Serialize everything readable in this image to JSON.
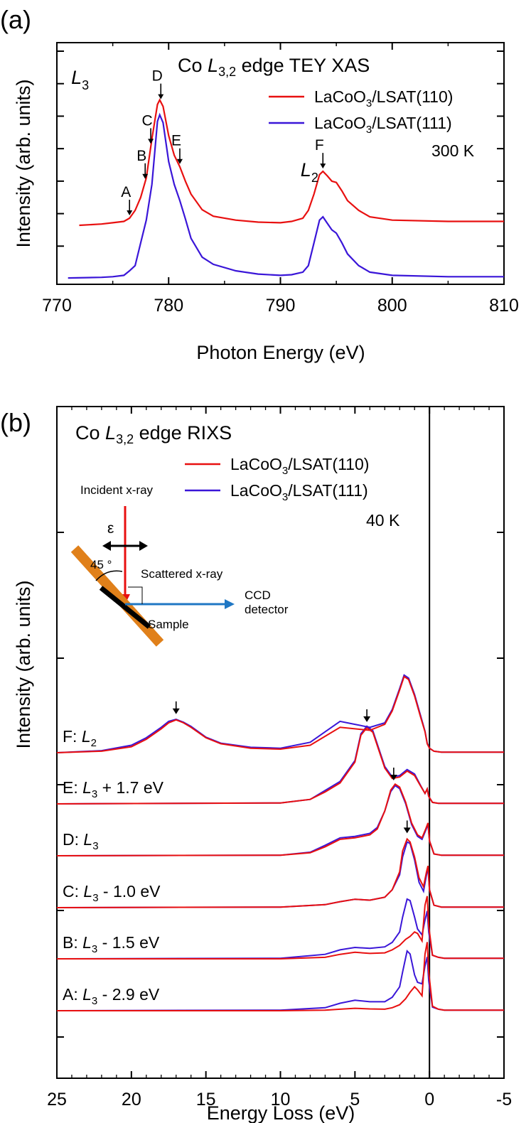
{
  "figure": {
    "panel_a_label": "(a)",
    "panel_b_label": "(b)"
  },
  "colors": {
    "red": "#e81010",
    "blue": "#3a16d8",
    "orange": "#e0801a",
    "arrow_blue": "#1f77c4"
  },
  "chart_data": [
    {
      "type": "line",
      "title_prefix": "Co ",
      "title_edge": "L",
      "title_sub": "3,2",
      "title_suffix": " edge TEY XAS",
      "xlabel": "Photon Energy (eV)",
      "ylabel": "Intensity (arb. units)",
      "xlim": [
        770,
        810
      ],
      "ylim": [
        0,
        3.5
      ],
      "xticks": [
        770,
        780,
        790,
        800,
        810
      ],
      "temperature": "300 K",
      "series": [
        {
          "name_main": "LaCoO",
          "name_sub": "3",
          "name_rest": "/LSAT(110)",
          "color": "#e81010",
          "x": [
            772,
            774,
            775,
            776,
            776.5,
            777,
            777.5,
            778,
            778.5,
            779,
            779.2,
            779.5,
            780,
            780.5,
            781,
            781.5,
            782,
            783,
            784,
            786,
            788,
            790,
            791,
            792,
            792.5,
            793,
            793.5,
            793.8,
            794.2,
            794.6,
            795,
            795.5,
            796,
            797,
            798,
            800,
            805,
            810
          ],
          "y": [
            0.82,
            0.84,
            0.86,
            0.88,
            0.93,
            1.05,
            1.25,
            1.55,
            2.15,
            2.68,
            2.75,
            2.65,
            2.2,
            1.9,
            1.72,
            1.5,
            1.3,
            1.06,
            0.96,
            0.9,
            0.87,
            0.86,
            0.88,
            0.93,
            1.05,
            1.3,
            1.6,
            1.65,
            1.58,
            1.5,
            1.48,
            1.35,
            1.2,
            1.05,
            0.95,
            0.9,
            0.88,
            0.88
          ]
        },
        {
          "name_main": "LaCoO",
          "name_sub": "3",
          "name_rest": "/LSAT(111)",
          "color": "#3a16d8",
          "x": [
            771,
            774,
            775,
            776,
            776.5,
            777,
            777.5,
            778,
            778.5,
            779,
            779.2,
            779.5,
            780,
            780.5,
            781,
            781.5,
            782,
            783,
            784,
            786,
            788,
            790,
            791,
            792,
            792.5,
            793,
            793.5,
            793.8,
            794.2,
            794.6,
            795,
            795.5,
            796,
            797,
            798,
            800,
            805,
            810
          ],
          "y": [
            0.01,
            0.02,
            0.03,
            0.05,
            0.12,
            0.2,
            0.55,
            0.9,
            1.45,
            2.42,
            2.52,
            2.4,
            1.8,
            1.45,
            1.2,
            0.92,
            0.62,
            0.33,
            0.22,
            0.12,
            0.07,
            0.05,
            0.06,
            0.1,
            0.2,
            0.55,
            0.9,
            0.95,
            0.85,
            0.75,
            0.7,
            0.55,
            0.38,
            0.2,
            0.1,
            0.05,
            0.03,
            0.03
          ]
        }
      ],
      "annotations": [
        {
          "label": "A",
          "x": 776.5
        },
        {
          "label": "B",
          "x": 777.9
        },
        {
          "label": "C",
          "x": 778.4
        },
        {
          "label": "D",
          "x": 779.3
        },
        {
          "label": "E",
          "x": 781.0
        },
        {
          "label": "F",
          "x": 793.8
        }
      ],
      "edge_labels": [
        {
          "main": "L",
          "sub": "3",
          "x": 777.0
        },
        {
          "main": "L",
          "sub": "2",
          "x": 791.8
        }
      ]
    },
    {
      "type": "line",
      "title_prefix": "Co ",
      "title_edge": "L",
      "title_sub": "3,2",
      "title_suffix": " edge RIXS",
      "xlabel": "Energy Loss (eV)",
      "ylabel": "Intensity (arb. units)",
      "xlim": [
        25,
        -5
      ],
      "xticks": [
        25,
        20,
        15,
        10,
        5,
        0,
        -5
      ],
      "temperature": "40 K",
      "spectra": [
        {
          "label_prefix": "A: ",
          "label_edge": "L",
          "label_sub": "3",
          "label_suffix": " - 2.9 eV",
          "baseline": 0.0,
          "red": {
            "x": [
              25,
              10,
              7,
              6,
              5,
              4,
              3,
              2.5,
              2,
              1.6,
              1.3,
              1.0,
              0.8,
              0.5,
              0.3,
              0.15,
              0.05,
              -0.2,
              -0.6,
              -1,
              -5
            ],
            "y": [
              0,
              0,
              0.02,
              0.05,
              0.08,
              0.06,
              0.05,
              0.1,
              0.2,
              0.4,
              0.62,
              0.8,
              0.7,
              0.5,
              1.9,
              2.3,
              1.3,
              0.15,
              0.05,
              0.02,
              0.02
            ]
          },
          "blue": {
            "x": [
              25,
              10,
              7,
              6,
              5,
              4,
              3,
              2.5,
              2,
              1.8,
              1.5,
              1.3,
              1.0,
              0.8,
              0.5,
              0.3,
              0.15,
              0.05,
              -0.2,
              -0.6,
              -1,
              -5
            ],
            "y": [
              0,
              0.02,
              0.1,
              0.25,
              0.35,
              0.3,
              0.3,
              0.45,
              0.8,
              1.3,
              2.0,
              1.9,
              1.2,
              0.95,
              0.9,
              1.5,
              1.8,
              1.0,
              0.12,
              0.05,
              0.02,
              0.02
            ]
          },
          "arrow": null
        },
        {
          "label_prefix": "B: ",
          "label_edge": "L",
          "label_sub": "3",
          "label_suffix": " - 1.5 eV",
          "baseline": 1.0,
          "red": {
            "x": [
              25,
              10,
              7,
              6,
              5,
              4,
              3,
              2.5,
              2,
              1.6,
              1.3,
              1.0,
              0.8,
              0.5,
              0.3,
              0.15,
              0.05,
              -0.2,
              -0.6,
              -1,
              -5
            ],
            "y": [
              0,
              0,
              0.05,
              0.15,
              0.22,
              0.18,
              0.2,
              0.3,
              0.45,
              0.65,
              0.75,
              0.9,
              0.85,
              0.6,
              1.8,
              2.1,
              1.1,
              0.12,
              0.05,
              0.02,
              0.02
            ]
          },
          "blue": {
            "x": [
              25,
              10,
              7,
              6,
              5,
              4,
              3,
              2.5,
              2,
              1.8,
              1.5,
              1.3,
              1.0,
              0.8,
              0.5,
              0.3,
              0.15,
              0.05,
              -0.2,
              -0.6,
              -1,
              -5
            ],
            "y": [
              0,
              0.02,
              0.15,
              0.3,
              0.38,
              0.35,
              0.4,
              0.55,
              0.9,
              1.4,
              2.0,
              1.95,
              1.4,
              1.0,
              0.8,
              1.3,
              1.6,
              0.9,
              0.12,
              0.05,
              0.02,
              0.02
            ]
          },
          "arrow": null
        },
        {
          "label_prefix": "C: ",
          "label_edge": "L",
          "label_sub": "3",
          "label_suffix": " - 1.0 eV",
          "baseline": 2.0,
          "red": {
            "x": [
              25,
              10,
              7,
              6,
              5,
              4,
              3,
              2.5,
              2,
              1.8,
              1.5,
              1.3,
              1.0,
              0.7,
              0.4,
              0.2,
              0.1,
              0,
              -0.3,
              -0.8,
              -5
            ],
            "y": [
              0,
              0.02,
              0.1,
              0.2,
              0.28,
              0.25,
              0.35,
              0.6,
              1.2,
              1.9,
              2.3,
              2.2,
              1.7,
              1.0,
              0.7,
              1.2,
              1.4,
              0.6,
              0.08,
              0.02,
              0.02
            ]
          },
          "blue": {
            "x": [
              25,
              10,
              7,
              6,
              5,
              4,
              3,
              2.5,
              2,
              1.8,
              1.5,
              1.3,
              1.0,
              0.7,
              0.4,
              0.2,
              0.1,
              0,
              -0.3,
              -0.8,
              -5
            ],
            "y": [
              0,
              0.02,
              0.1,
              0.2,
              0.28,
              0.25,
              0.35,
              0.6,
              1.1,
              1.7,
              2.2,
              2.15,
              1.6,
              0.85,
              0.55,
              1.1,
              1.35,
              0.6,
              0.08,
              0.02,
              0.02
            ]
          },
          "arrow": 1.5
        },
        {
          "label_prefix": "D: ",
          "label_edge": "L",
          "label_sub": "3",
          "label_suffix": "",
          "baseline": 3.0,
          "red": {
            "x": [
              25,
              10,
              8,
              7,
              6,
              5,
              4,
              3.5,
              3,
              2.6,
              2.3,
              2.0,
              1.6,
              1.2,
              0.8,
              0.5,
              0.25,
              0.1,
              0,
              -0.3,
              -0.8,
              -5
            ],
            "y": [
              0,
              0.02,
              0.1,
              0.3,
              0.55,
              0.6,
              0.7,
              0.9,
              1.5,
              2.2,
              2.4,
              2.3,
              1.8,
              1.1,
              0.7,
              0.6,
              0.9,
              1.1,
              0.5,
              0.06,
              0.02,
              0.02
            ]
          },
          "blue": {
            "x": [
              25,
              10,
              8,
              7,
              6,
              5,
              4,
              3.5,
              3,
              2.6,
              2.3,
              2.0,
              1.6,
              1.2,
              0.8,
              0.5,
              0.25,
              0.1,
              0,
              -0.3,
              -0.8,
              -5
            ],
            "y": [
              0,
              0.02,
              0.12,
              0.35,
              0.6,
              0.65,
              0.75,
              0.95,
              1.5,
              2.15,
              2.35,
              2.25,
              1.75,
              1.05,
              0.65,
              0.55,
              0.85,
              1.05,
              0.5,
              0.06,
              0.02,
              0.02
            ]
          },
          "arrow": 2.4
        },
        {
          "label_prefix": "E: ",
          "label_edge": "L",
          "label_sub": "3",
          "label_suffix": " + 1.7 eV",
          "baseline": 4.0,
          "red": {
            "x": [
              25,
              10,
              8,
              7,
              6,
              5,
              4.6,
              4.2,
              3.8,
              3.4,
              3.0,
              2.5,
              2.0,
              1.5,
              1.0,
              0.6,
              0.3,
              0.15,
              0.05,
              -0.2,
              -0.6,
              -5
            ],
            "y": [
              0,
              0.03,
              0.15,
              0.4,
              0.7,
              1.4,
              2.3,
              2.55,
              2.4,
              1.8,
              1.2,
              0.85,
              0.9,
              1.1,
              0.95,
              0.6,
              0.35,
              0.5,
              0.25,
              0.05,
              0.02,
              0.02
            ]
          },
          "blue": {
            "x": [
              25,
              10,
              8,
              7,
              6,
              5,
              4.6,
              4.2,
              3.8,
              3.4,
              3.0,
              2.5,
              2.0,
              1.5,
              1.0,
              0.6,
              0.3,
              0.15,
              0.05,
              -0.2,
              -0.6,
              -5
            ],
            "y": [
              0,
              0.03,
              0.15,
              0.45,
              0.75,
              1.45,
              2.35,
              2.6,
              2.45,
              1.85,
              1.25,
              0.9,
              0.95,
              1.15,
              1.0,
              0.62,
              0.35,
              0.5,
              0.25,
              0.05,
              0.02,
              0.02
            ]
          },
          "arrow": 4.2
        },
        {
          "label_prefix": "F: ",
          "label_edge": "L",
          "label_sub": "2",
          "label_suffix": "",
          "baseline": 5.0,
          "red": {
            "x": [
              25,
              22,
              20,
              19,
              18,
              17.5,
              17,
              16.5,
              16,
              15,
              14,
              12,
              10,
              8,
              7,
              6,
              5,
              4,
              3,
              2.5,
              2,
              1.7,
              1.4,
              1.0,
              0.6,
              0.3,
              0.15,
              0,
              -0.3,
              -0.8,
              -5
            ],
            "y": [
              0,
              0.05,
              0.2,
              0.45,
              0.8,
              1.0,
              1.1,
              1.0,
              0.85,
              0.5,
              0.3,
              0.15,
              0.12,
              0.25,
              0.55,
              0.85,
              0.8,
              0.75,
              0.95,
              1.4,
              2.1,
              2.55,
              2.45,
              1.9,
              1.2,
              0.7,
              0.3,
              0.15,
              0.05,
              0.02,
              0.02
            ]
          },
          "blue": {
            "x": [
              25,
              22,
              20,
              19,
              18,
              17.5,
              17,
              16.5,
              16,
              15,
              14,
              12,
              10,
              8,
              7,
              6,
              5,
              4,
              3,
              2.5,
              2,
              1.7,
              1.4,
              1.0,
              0.6,
              0.3,
              0.15,
              0,
              -0.3,
              -0.8,
              -5
            ],
            "y": [
              0,
              0.07,
              0.25,
              0.5,
              0.85,
              1.05,
              1.12,
              1.02,
              0.88,
              0.52,
              0.32,
              0.18,
              0.15,
              0.35,
              0.7,
              1.05,
              0.95,
              0.85,
              1.0,
              1.45,
              2.15,
              2.6,
              2.5,
              1.95,
              1.25,
              0.72,
              0.32,
              0.15,
              0.05,
              0.02,
              0.02
            ]
          },
          "arrow": 17.0
        }
      ],
      "legend": [
        {
          "name_main": "LaCoO",
          "name_sub": "3",
          "name_rest": "/LSAT(110)",
          "color": "#e81010"
        },
        {
          "name_main": "LaCoO",
          "name_sub": "3",
          "name_rest": "/LSAT(111)",
          "color": "#3a16d8"
        }
      ],
      "inset": {
        "incident": "Incident x-ray",
        "polarization": "ε",
        "angle": "45 °",
        "scattered": "Scattered x-ray",
        "detector_line1": "CCD",
        "detector_line2": "detector",
        "sample": "Sample"
      }
    }
  ]
}
